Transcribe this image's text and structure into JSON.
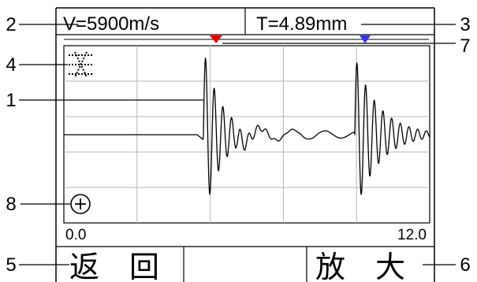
{
  "header": {
    "velocity_text": "V=5900m/s",
    "thickness_text": "T=4.89mm"
  },
  "callouts": {
    "c1": "1",
    "c2": "2",
    "c3": "3",
    "c4": "4",
    "c5": "5",
    "c6": "6",
    "c7": "7",
    "c8": "8"
  },
  "axis": {
    "x_min_label": "0.0",
    "x_max_label": "12.0"
  },
  "softkeys": {
    "left_label": "返　回",
    "right_label": "放　大"
  },
  "icons": {
    "gate_icon": "crosshair-dotted-icon",
    "zoom_icon": "circle-plus-icon"
  },
  "colors": {
    "gate_marker_1": "#ee0000",
    "gate_marker_2": "#3333ee",
    "grid": "#b4b4b4",
    "trace": "#000000"
  }
}
